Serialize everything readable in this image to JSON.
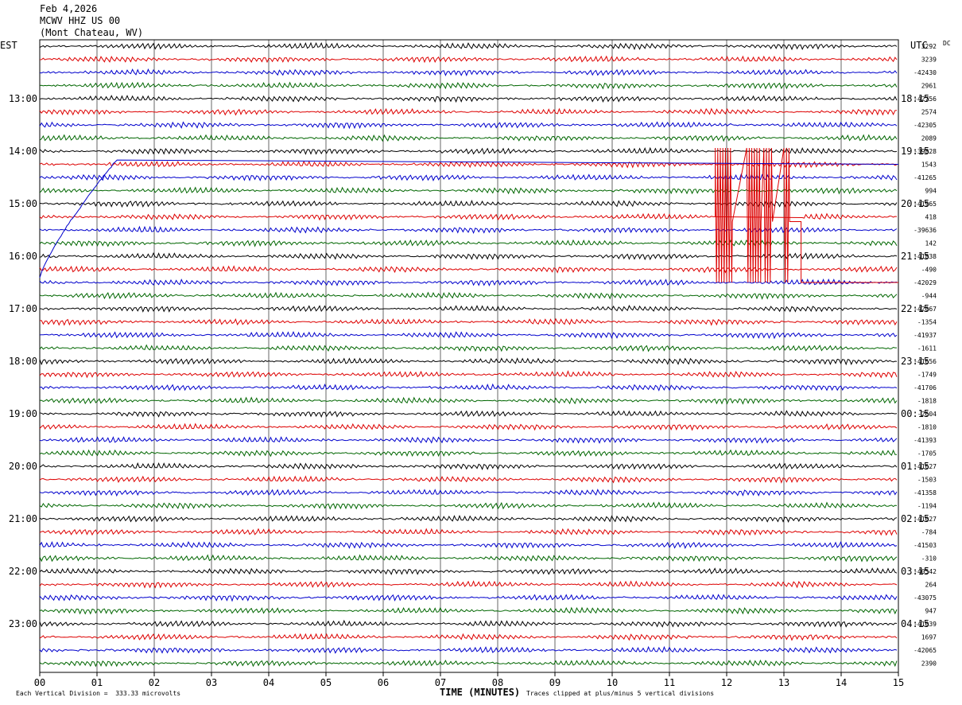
{
  "header": {
    "date": "Feb 4,2026",
    "station": "MCWV HHZ US 00",
    "location": "(Mont Chateau, WV)"
  },
  "left_tz": "EST",
  "right_tz": "UTC",
  "dc_label": "DC",
  "footer": {
    "xlabel": "TIME (MINUTES)",
    "scale_note": "Each Vertical Division =  333.33 microvolts",
    "clip_note": "Traces clipped at plus/minus 5 vertical divisions"
  },
  "chart_data": {
    "type": "line",
    "title": "MCWV HHZ US 00",
    "xlabel": "TIME (MINUTES)",
    "x_ticks": [
      "00",
      "01",
      "02",
      "03",
      "04",
      "05",
      "06",
      "07",
      "08",
      "09",
      "10",
      "11",
      "12",
      "13",
      "14",
      "15"
    ],
    "xlim": [
      0,
      15
    ],
    "lines_per_hour": 4,
    "trace_colors": [
      "#000000",
      "#dd0000",
      "#0000cc",
      "#006600"
    ],
    "est_hour_labels": [
      "13:00",
      "14:00",
      "15:00",
      "16:00",
      "17:00",
      "18:00",
      "19:00",
      "20:00",
      "21:00",
      "22:00",
      "23:00"
    ],
    "utc_hour_labels": [
      "18:15",
      "19:15",
      "20:15",
      "21:15",
      "22:15",
      "23:15",
      "00:15",
      "01:15",
      "02:15",
      "03:15",
      "04:15"
    ],
    "first_labeled_trace_index": 4,
    "dc_offsets": [
      "3292",
      "3239",
      "-42430",
      "2961",
      "-42756",
      "2574",
      "-42305",
      "2089",
      "-39828",
      "1543",
      "-41265",
      "994",
      "-41965",
      "418",
      "-39636",
      "142",
      "-41838",
      "-490",
      "-42029",
      "-944",
      "-42067",
      "-1354",
      "-41937",
      "-1611",
      "-41656",
      "-1749",
      "-41706",
      "-1818",
      "-2604",
      "-1810",
      "-41393",
      "-1705",
      "-41627",
      "-1503",
      "-41358",
      "-1194",
      "-41027",
      "-784",
      "-41503",
      "-310",
      "-40542",
      "264",
      "-43075",
      "947",
      "-41039",
      "1697",
      "-42065",
      "2390"
    ],
    "event": {
      "clipped_trace_index": 13,
      "start_min": 11.8,
      "end_min": 13.3,
      "top_trace_index": 8,
      "bottom_trace_index": 18
    },
    "step_artifact": {
      "trace_index": 18,
      "to_trace_index": 9,
      "end_min": 1.35
    }
  }
}
